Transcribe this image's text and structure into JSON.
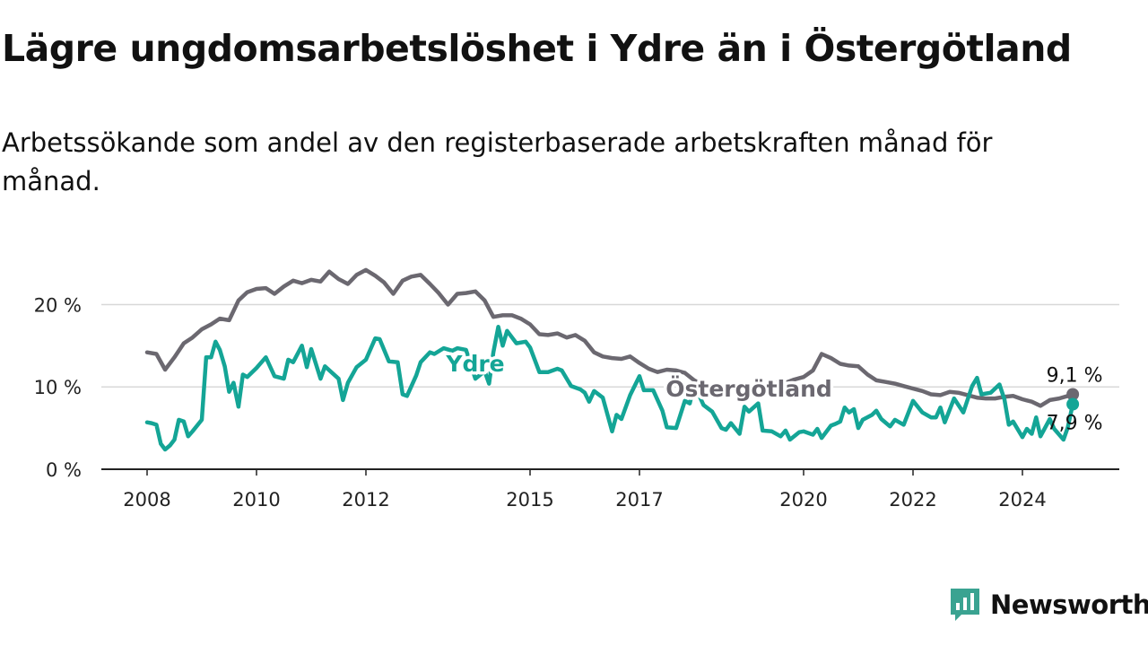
{
  "title": "Lägre ungdomsarbetslöshet i Ydre än i Östergötland",
  "subtitle": "Arbetssökande som andel av den registerbaserade arbetskraften månad för månad.",
  "brand": {
    "name": "Newsworthy",
    "color": "#3aa391"
  },
  "chart_data": {
    "type": "line",
    "title": "Lägre ungdomsarbetslöshet i Ydre än i Östergötland",
    "subtitle": "Arbetssökande som andel av den registerbaserade arbetskraften månad för månad.",
    "xlabel": "",
    "ylabel": "",
    "ylim": [
      0,
      25
    ],
    "y_ticks": [
      {
        "value": 0,
        "label": "0 %"
      },
      {
        "value": 10,
        "label": "10 %"
      },
      {
        "value": 20,
        "label": "20 %"
      }
    ],
    "x_ticks": [
      2008,
      2010,
      2012,
      2015,
      2017,
      2020,
      2022,
      2024
    ],
    "xlim": [
      2008.0,
      2025.0
    ],
    "grid": "horizontal",
    "legend": "inline labels",
    "series": [
      {
        "name": "Östergötland",
        "color": "#6b6870",
        "end_label": "9,1 %",
        "points": [
          [
            2008.0,
            14.2
          ],
          [
            2008.17,
            14.0
          ],
          [
            2008.33,
            12.1
          ],
          [
            2008.5,
            13.6
          ],
          [
            2008.67,
            15.3
          ],
          [
            2008.83,
            16.0
          ],
          [
            2009.0,
            17.0
          ],
          [
            2009.17,
            17.6
          ],
          [
            2009.33,
            18.3
          ],
          [
            2009.5,
            18.1
          ],
          [
            2009.67,
            20.5
          ],
          [
            2009.83,
            21.5
          ],
          [
            2010.0,
            21.9
          ],
          [
            2010.17,
            22.0
          ],
          [
            2010.33,
            21.3
          ],
          [
            2010.5,
            22.2
          ],
          [
            2010.67,
            22.9
          ],
          [
            2010.83,
            22.6
          ],
          [
            2011.0,
            23.0
          ],
          [
            2011.17,
            22.8
          ],
          [
            2011.33,
            24.0
          ],
          [
            2011.5,
            23.1
          ],
          [
            2011.67,
            22.5
          ],
          [
            2011.83,
            23.6
          ],
          [
            2012.0,
            24.2
          ],
          [
            2012.17,
            23.5
          ],
          [
            2012.33,
            22.7
          ],
          [
            2012.5,
            21.3
          ],
          [
            2012.67,
            22.9
          ],
          [
            2012.83,
            23.4
          ],
          [
            2013.0,
            23.6
          ],
          [
            2013.17,
            22.5
          ],
          [
            2013.33,
            21.4
          ],
          [
            2013.5,
            20.0
          ],
          [
            2013.67,
            21.3
          ],
          [
            2013.83,
            21.4
          ],
          [
            2014.0,
            21.6
          ],
          [
            2014.17,
            20.5
          ],
          [
            2014.33,
            18.5
          ],
          [
            2014.5,
            18.7
          ],
          [
            2014.67,
            18.7
          ],
          [
            2014.83,
            18.3
          ],
          [
            2015.0,
            17.6
          ],
          [
            2015.17,
            16.4
          ],
          [
            2015.33,
            16.3
          ],
          [
            2015.5,
            16.5
          ],
          [
            2015.67,
            16.0
          ],
          [
            2015.83,
            16.3
          ],
          [
            2016.0,
            15.6
          ],
          [
            2016.17,
            14.2
          ],
          [
            2016.33,
            13.7
          ],
          [
            2016.5,
            13.5
          ],
          [
            2016.67,
            13.4
          ],
          [
            2016.83,
            13.7
          ],
          [
            2017.0,
            12.9
          ],
          [
            2017.17,
            12.2
          ],
          [
            2017.33,
            11.8
          ],
          [
            2017.5,
            12.1
          ],
          [
            2017.67,
            12.0
          ],
          [
            2017.83,
            11.7
          ],
          [
            2018.0,
            10.8
          ],
          [
            2018.17,
            10.2
          ],
          [
            2018.33,
            9.9
          ],
          [
            2018.5,
            10.1
          ],
          [
            2018.67,
            10.0
          ],
          [
            2018.83,
            9.9
          ],
          [
            2019.0,
            9.7
          ],
          [
            2019.17,
            9.9
          ],
          [
            2019.33,
            10.1
          ],
          [
            2019.5,
            10.5
          ],
          [
            2019.67,
            10.5
          ],
          [
            2019.83,
            10.9
          ],
          [
            2020.0,
            11.2
          ],
          [
            2020.17,
            12.0
          ],
          [
            2020.33,
            14.0
          ],
          [
            2020.5,
            13.5
          ],
          [
            2020.67,
            12.8
          ],
          [
            2020.83,
            12.6
          ],
          [
            2021.0,
            12.5
          ],
          [
            2021.17,
            11.5
          ],
          [
            2021.33,
            10.8
          ],
          [
            2021.5,
            10.6
          ],
          [
            2021.67,
            10.4
          ],
          [
            2021.83,
            10.1
          ],
          [
            2022.0,
            9.8
          ],
          [
            2022.17,
            9.5
          ],
          [
            2022.33,
            9.1
          ],
          [
            2022.5,
            9.0
          ],
          [
            2022.67,
            9.4
          ],
          [
            2022.83,
            9.3
          ],
          [
            2023.0,
            9.0
          ],
          [
            2023.17,
            8.7
          ],
          [
            2023.33,
            8.6
          ],
          [
            2023.5,
            8.6
          ],
          [
            2023.67,
            8.8
          ],
          [
            2023.83,
            8.9
          ],
          [
            2024.0,
            8.5
          ],
          [
            2024.17,
            8.2
          ],
          [
            2024.33,
            7.7
          ],
          [
            2024.5,
            8.4
          ],
          [
            2024.67,
            8.6
          ],
          [
            2024.83,
            8.9
          ],
          [
            2024.92,
            9.1
          ]
        ]
      },
      {
        "name": "Ydre",
        "color": "#14a596",
        "end_label": "7,9 %",
        "points": [
          [
            2008.0,
            5.7
          ],
          [
            2008.08,
            5.6
          ],
          [
            2008.17,
            5.4
          ],
          [
            2008.25,
            3.1
          ],
          [
            2008.33,
            2.4
          ],
          [
            2008.42,
            2.9
          ],
          [
            2008.5,
            3.6
          ],
          [
            2008.58,
            6.0
          ],
          [
            2008.67,
            5.8
          ],
          [
            2008.75,
            4.0
          ],
          [
            2008.83,
            4.6
          ],
          [
            2009.0,
            6.0
          ],
          [
            2009.08,
            13.6
          ],
          [
            2009.17,
            13.6
          ],
          [
            2009.25,
            15.5
          ],
          [
            2009.33,
            14.5
          ],
          [
            2009.42,
            12.5
          ],
          [
            2009.5,
            9.4
          ],
          [
            2009.58,
            10.5
          ],
          [
            2009.67,
            7.6
          ],
          [
            2009.75,
            11.5
          ],
          [
            2009.83,
            11.2
          ],
          [
            2010.0,
            12.3
          ],
          [
            2010.17,
            13.6
          ],
          [
            2010.33,
            11.3
          ],
          [
            2010.5,
            11.0
          ],
          [
            2010.58,
            13.3
          ],
          [
            2010.67,
            13.0
          ],
          [
            2010.83,
            15.0
          ],
          [
            2010.92,
            12.4
          ],
          [
            2011.0,
            14.6
          ],
          [
            2011.17,
            11.0
          ],
          [
            2011.25,
            12.5
          ],
          [
            2011.5,
            11.0
          ],
          [
            2011.58,
            8.4
          ],
          [
            2011.67,
            10.5
          ],
          [
            2011.83,
            12.4
          ],
          [
            2012.0,
            13.3
          ],
          [
            2012.17,
            15.9
          ],
          [
            2012.25,
            15.8
          ],
          [
            2012.42,
            13.1
          ],
          [
            2012.58,
            13.0
          ],
          [
            2012.67,
            9.1
          ],
          [
            2012.75,
            8.9
          ],
          [
            2012.92,
            11.4
          ],
          [
            2013.0,
            13.0
          ],
          [
            2013.17,
            14.2
          ],
          [
            2013.25,
            14.0
          ],
          [
            2013.42,
            14.7
          ],
          [
            2013.58,
            14.4
          ],
          [
            2013.67,
            14.7
          ],
          [
            2013.83,
            14.5
          ],
          [
            2014.0,
            11.0
          ],
          [
            2014.17,
            11.9
          ],
          [
            2014.25,
            10.4
          ],
          [
            2014.33,
            14.2
          ],
          [
            2014.42,
            17.3
          ],
          [
            2014.5,
            15.0
          ],
          [
            2014.58,
            16.8
          ],
          [
            2014.75,
            15.3
          ],
          [
            2014.92,
            15.5
          ],
          [
            2015.0,
            14.8
          ],
          [
            2015.17,
            11.8
          ],
          [
            2015.33,
            11.8
          ],
          [
            2015.5,
            12.2
          ],
          [
            2015.58,
            12.0
          ],
          [
            2015.75,
            10.1
          ],
          [
            2015.92,
            9.7
          ],
          [
            2016.0,
            9.3
          ],
          [
            2016.08,
            8.2
          ],
          [
            2016.17,
            9.5
          ],
          [
            2016.33,
            8.7
          ],
          [
            2016.5,
            4.6
          ],
          [
            2016.58,
            6.6
          ],
          [
            2016.67,
            6.1
          ],
          [
            2016.83,
            9.0
          ],
          [
            2017.0,
            11.3
          ],
          [
            2017.08,
            9.6
          ],
          [
            2017.25,
            9.6
          ],
          [
            2017.42,
            7.1
          ],
          [
            2017.5,
            5.1
          ],
          [
            2017.67,
            5.0
          ],
          [
            2017.83,
            8.3
          ],
          [
            2017.92,
            8.0
          ],
          [
            2018.0,
            10.3
          ],
          [
            2018.17,
            7.8
          ],
          [
            2018.33,
            7.0
          ],
          [
            2018.5,
            5.0
          ],
          [
            2018.58,
            4.8
          ],
          [
            2018.67,
            5.6
          ],
          [
            2018.83,
            4.3
          ],
          [
            2018.92,
            7.6
          ],
          [
            2019.0,
            7.0
          ],
          [
            2019.17,
            8.0
          ],
          [
            2019.25,
            4.7
          ],
          [
            2019.42,
            4.6
          ],
          [
            2019.58,
            4.0
          ],
          [
            2019.67,
            4.7
          ],
          [
            2019.75,
            3.6
          ],
          [
            2019.92,
            4.5
          ],
          [
            2020.0,
            4.6
          ],
          [
            2020.17,
            4.2
          ],
          [
            2020.25,
            4.9
          ],
          [
            2020.33,
            3.8
          ],
          [
            2020.5,
            5.3
          ],
          [
            2020.58,
            5.5
          ],
          [
            2020.67,
            5.8
          ],
          [
            2020.75,
            7.5
          ],
          [
            2020.83,
            6.9
          ],
          [
            2020.92,
            7.3
          ],
          [
            2021.0,
            5.0
          ],
          [
            2021.08,
            6.0
          ],
          [
            2021.25,
            6.6
          ],
          [
            2021.33,
            7.1
          ],
          [
            2021.42,
            6.1
          ],
          [
            2021.58,
            5.2
          ],
          [
            2021.67,
            6.0
          ],
          [
            2021.83,
            5.4
          ],
          [
            2022.0,
            8.3
          ],
          [
            2022.17,
            6.9
          ],
          [
            2022.33,
            6.3
          ],
          [
            2022.42,
            6.3
          ],
          [
            2022.5,
            7.5
          ],
          [
            2022.58,
            5.7
          ],
          [
            2022.75,
            8.6
          ],
          [
            2022.92,
            6.9
          ],
          [
            2023.08,
            10.1
          ],
          [
            2023.17,
            11.1
          ],
          [
            2023.25,
            9.1
          ],
          [
            2023.42,
            9.3
          ],
          [
            2023.58,
            10.3
          ],
          [
            2023.67,
            8.5
          ],
          [
            2023.75,
            5.4
          ],
          [
            2023.83,
            5.8
          ],
          [
            2024.0,
            3.9
          ],
          [
            2024.08,
            4.9
          ],
          [
            2024.17,
            4.3
          ],
          [
            2024.25,
            6.3
          ],
          [
            2024.33,
            4.0
          ],
          [
            2024.5,
            6.1
          ],
          [
            2024.58,
            4.9
          ],
          [
            2024.75,
            3.6
          ],
          [
            2024.83,
            5.1
          ],
          [
            2024.92,
            7.9
          ]
        ]
      }
    ],
    "inline_labels": [
      {
        "series": "Ydre",
        "text": "Ydre",
        "x": 2014.0,
        "y": 11.9
      },
      {
        "series": "Östergötland",
        "text": "Östergötland",
        "x": 2019.0,
        "y": 8.8
      }
    ]
  }
}
